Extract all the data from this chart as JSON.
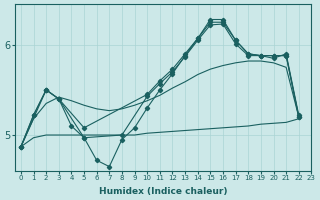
{
  "xlabel": "Humidex (Indice chaleur)",
  "bg_color": "#cce8e8",
  "line_color": "#1a6060",
  "grid_color": "#aad4d4",
  "xlim": [
    -0.5,
    23
  ],
  "ylim": [
    4.6,
    6.45
  ],
  "xticks": [
    0,
    1,
    2,
    3,
    4,
    5,
    6,
    7,
    8,
    9,
    10,
    11,
    12,
    13,
    14,
    15,
    16,
    17,
    18,
    19,
    20,
    21,
    22,
    23
  ],
  "yticks": [
    5,
    6
  ],
  "line_smooth_x": [
    0,
    1,
    2,
    3,
    4,
    5,
    6,
    7,
    8,
    9,
    10,
    11,
    12,
    13,
    14,
    15,
    16,
    17,
    18,
    19,
    20,
    21,
    22
  ],
  "line_smooth_y": [
    4.87,
    5.18,
    5.35,
    5.42,
    5.38,
    5.33,
    5.29,
    5.27,
    5.29,
    5.33,
    5.38,
    5.44,
    5.52,
    5.59,
    5.67,
    5.73,
    5.77,
    5.8,
    5.82,
    5.82,
    5.8,
    5.75,
    5.2
  ],
  "line_upper_x": [
    0,
    2,
    3,
    5,
    10,
    11,
    12,
    13,
    14,
    15,
    16,
    17,
    18,
    19,
    20,
    21,
    22
  ],
  "line_upper_y": [
    4.87,
    5.5,
    5.4,
    5.08,
    5.45,
    5.6,
    5.73,
    5.9,
    6.07,
    6.25,
    6.25,
    6.05,
    5.9,
    5.88,
    5.88,
    5.88,
    5.2
  ],
  "line_mid_x": [
    0,
    1,
    2,
    3,
    5,
    8,
    10,
    11,
    12,
    13,
    14,
    15,
    16,
    17,
    18,
    19,
    20,
    21,
    22
  ],
  "line_mid_y": [
    4.87,
    5.22,
    5.5,
    5.4,
    4.97,
    5.0,
    5.43,
    5.57,
    5.7,
    5.87,
    6.05,
    6.22,
    6.23,
    6.01,
    5.88,
    5.88,
    5.88,
    5.88,
    5.2
  ],
  "line_lower_x": [
    0,
    1,
    2,
    3,
    4,
    5,
    6,
    7,
    8,
    9,
    10,
    11,
    12,
    13,
    14,
    15,
    16,
    17,
    18,
    19,
    20,
    21,
    22
  ],
  "line_lower_y": [
    4.87,
    5.22,
    5.5,
    5.4,
    5.1,
    4.97,
    4.72,
    4.65,
    4.95,
    5.08,
    5.3,
    5.5,
    5.68,
    5.88,
    6.07,
    6.28,
    6.28,
    6.05,
    5.9,
    5.88,
    5.85,
    5.9,
    5.22
  ],
  "line_flat_x": [
    0,
    1,
    2,
    3,
    4,
    5,
    6,
    7,
    8,
    9,
    10,
    11,
    12,
    13,
    14,
    15,
    16,
    17,
    18,
    19,
    20,
    21,
    22
  ],
  "line_flat_y": [
    4.87,
    4.97,
    5.0,
    5.0,
    5.0,
    5.0,
    5.0,
    5.0,
    5.0,
    5.0,
    5.02,
    5.03,
    5.04,
    5.05,
    5.06,
    5.07,
    5.08,
    5.09,
    5.1,
    5.12,
    5.13,
    5.14,
    5.18
  ]
}
